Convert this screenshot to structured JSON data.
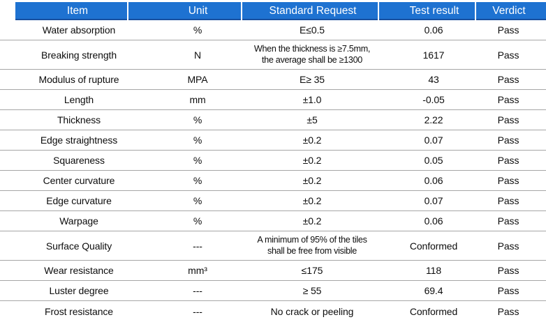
{
  "colors": {
    "header_bg": "#1e72d1",
    "header_bottom_edge": "#174f9f",
    "header_text": "#ffffff",
    "row_separator": "#a6a6a6",
    "body_text": "#0d0d0d"
  },
  "table": {
    "columns": [
      {
        "label": "Item"
      },
      {
        "label": "Unit"
      },
      {
        "label": "Standard Request"
      },
      {
        "label": "Test result"
      },
      {
        "label": "Verdict"
      }
    ],
    "rows": [
      {
        "item": "Water absorption",
        "unit": "%",
        "standard": "E≤0.5",
        "result": "0.06",
        "verdict": "Pass"
      },
      {
        "item": "Breaking strength",
        "unit": "N",
        "standard": "When the thickness is ≥7.5mm,\nthe average shall be ≥1300",
        "result": "1617",
        "verdict": "Pass"
      },
      {
        "item": "Modulus of rupture",
        "unit": "MPA",
        "standard": "E≥ 35",
        "result": "43",
        "verdict": "Pass"
      },
      {
        "item": "Length",
        "unit": "mm",
        "standard": "±1.0",
        "result": "-0.05",
        "verdict": "Pass"
      },
      {
        "item": "Thickness",
        "unit": "%",
        "standard": "±5",
        "result": "2.22",
        "verdict": "Pass"
      },
      {
        "item": "Edge straightness",
        "unit": "%",
        "standard": "±0.2",
        "result": "0.07",
        "verdict": "Pass"
      },
      {
        "item": "Squareness",
        "unit": "%",
        "standard": "±0.2",
        "result": "0.05",
        "verdict": "Pass"
      },
      {
        "item": "Center curvature",
        "unit": "%",
        "standard": "±0.2",
        "result": "0.06",
        "verdict": "Pass"
      },
      {
        "item": "Edge curvature",
        "unit": "%",
        "standard": "±0.2",
        "result": "0.07",
        "verdict": "Pass"
      },
      {
        "item": "Warpage",
        "unit": "%",
        "standard": "±0.2",
        "result": "0.06",
        "verdict": "Pass"
      },
      {
        "item": "Surface Quality",
        "unit": "---",
        "standard": "A minimum of 95% of the tiles\nshall be free from visible",
        "result": "Conformed",
        "verdict": "Pass"
      },
      {
        "item": "Wear resistance",
        "unit": "mm³",
        "standard": "≤175",
        "result": "118",
        "verdict": "Pass"
      },
      {
        "item": "Luster degree",
        "unit": "---",
        "standard": "≥ 55",
        "result": "69.4",
        "verdict": "Pass"
      },
      {
        "item": "Frost resistance",
        "unit": "---",
        "standard": "No crack or peeling",
        "result": "Conformed",
        "verdict": "Pass"
      }
    ]
  }
}
